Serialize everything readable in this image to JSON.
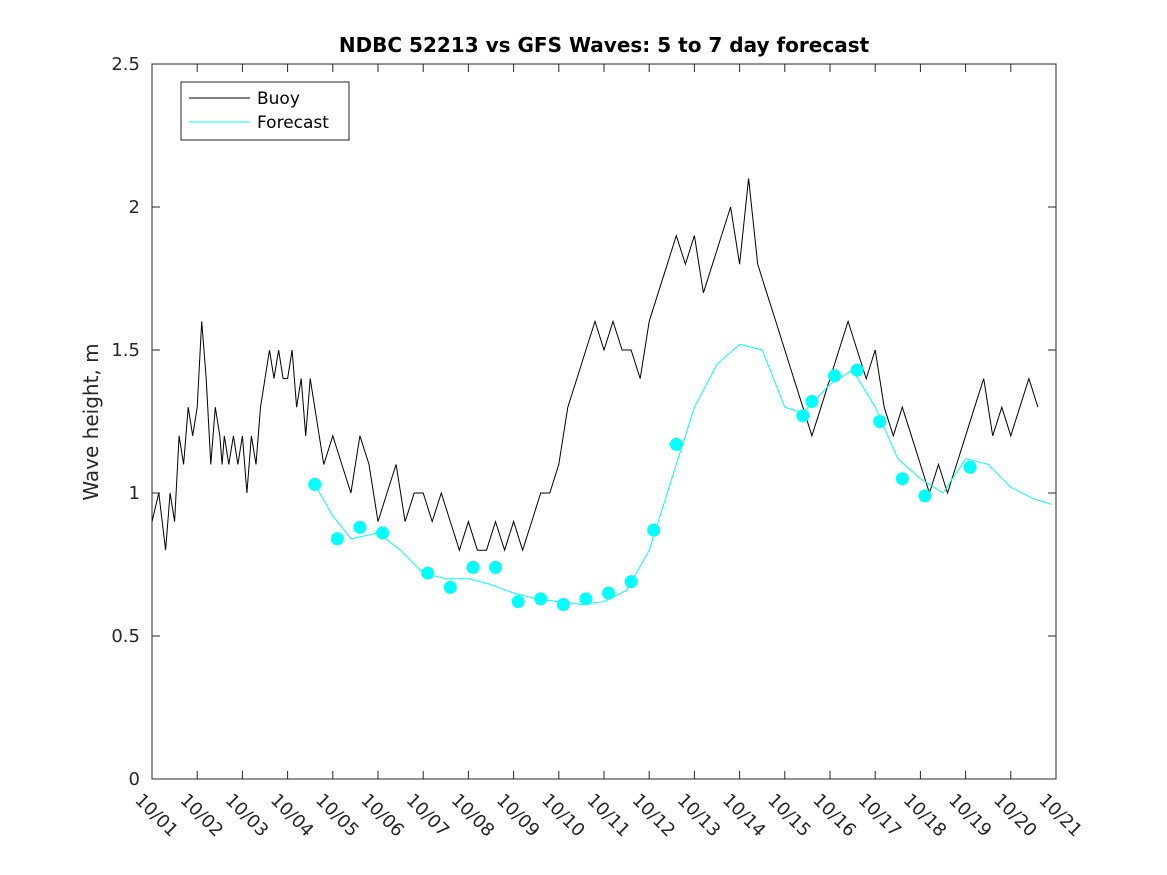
{
  "chart_data": {
    "type": "line",
    "title": "NDBC 52213 vs GFS Waves: 5 to 7 day forecast",
    "xlabel": "",
    "ylabel": "Wave height, m",
    "xlim": [
      0,
      20
    ],
    "ylim": [
      0,
      2.5
    ],
    "grid": false,
    "legend_position": "top-left",
    "x_tick_values": [
      0,
      1,
      2,
      3,
      4,
      5,
      6,
      7,
      8,
      9,
      10,
      11,
      12,
      13,
      14,
      15,
      16,
      17,
      18,
      19,
      20
    ],
    "x_tick_labels": [
      "10/01",
      "10/02",
      "10/03",
      "10/04",
      "10/05",
      "10/06",
      "10/07",
      "10/08",
      "10/09",
      "10/10",
      "10/11",
      "10/12",
      "10/13",
      "10/14",
      "10/15",
      "10/16",
      "10/17",
      "10/18",
      "10/19",
      "10/20",
      "10/21"
    ],
    "y_tick_values": [
      0,
      0.5,
      1,
      1.5,
      2,
      2.5
    ],
    "y_tick_labels": [
      "0",
      "0.5",
      "1",
      "1.5",
      "2",
      "2.5"
    ],
    "series": [
      {
        "name": "Buoy",
        "color": "#000000",
        "x": [
          0.0,
          0.15,
          0.3,
          0.4,
          0.5,
          0.6,
          0.7,
          0.8,
          0.9,
          1.0,
          1.1,
          1.2,
          1.3,
          1.4,
          1.5,
          1.55,
          1.6,
          1.7,
          1.8,
          1.9,
          2.0,
          2.1,
          2.2,
          2.3,
          2.4,
          2.5,
          2.6,
          2.7,
          2.8,
          2.9,
          3.0,
          3.1,
          3.2,
          3.3,
          3.4,
          3.5,
          3.6,
          3.7,
          3.8,
          4.0,
          4.2,
          4.4,
          4.6,
          4.8,
          5.0,
          5.2,
          5.4,
          5.6,
          5.8,
          6.0,
          6.2,
          6.4,
          6.6,
          6.8,
          7.0,
          7.2,
          7.4,
          7.6,
          7.8,
          8.0,
          8.2,
          8.4,
          8.6,
          8.8,
          9.0,
          9.2,
          9.4,
          9.6,
          9.8,
          10.0,
          10.2,
          10.4,
          10.6,
          10.8,
          11.0,
          11.2,
          11.4,
          11.6,
          11.8,
          12.0,
          12.2,
          12.4,
          12.6,
          12.8,
          13.0,
          13.2,
          13.4,
          13.6,
          13.8,
          14.0,
          14.2,
          14.4,
          14.6,
          14.8,
          15.0,
          15.2,
          15.4,
          15.6,
          15.8,
          16.0,
          16.2,
          16.4,
          16.6,
          16.8,
          17.0,
          17.2,
          17.4,
          17.6,
          17.8,
          18.0,
          18.2,
          18.4,
          18.6,
          18.8,
          19.0,
          19.2,
          19.4,
          19.6
        ],
        "y": [
          0.9,
          1.0,
          0.8,
          1.0,
          0.9,
          1.2,
          1.1,
          1.3,
          1.2,
          1.3,
          1.6,
          1.4,
          1.1,
          1.3,
          1.2,
          1.1,
          1.2,
          1.1,
          1.2,
          1.1,
          1.2,
          1.0,
          1.2,
          1.1,
          1.3,
          1.4,
          1.5,
          1.4,
          1.5,
          1.4,
          1.4,
          1.5,
          1.3,
          1.4,
          1.2,
          1.4,
          1.3,
          1.2,
          1.1,
          1.2,
          1.1,
          1.0,
          1.2,
          1.1,
          0.9,
          1.0,
          1.1,
          0.9,
          1.0,
          1.0,
          0.9,
          1.0,
          0.9,
          0.8,
          0.9,
          0.8,
          0.8,
          0.9,
          0.8,
          0.9,
          0.8,
          0.9,
          1.0,
          1.0,
          1.1,
          1.3,
          1.4,
          1.5,
          1.6,
          1.5,
          1.6,
          1.5,
          1.5,
          1.4,
          1.6,
          1.7,
          1.8,
          1.9,
          1.8,
          1.9,
          1.7,
          1.8,
          1.9,
          2.0,
          1.8,
          2.1,
          1.8,
          1.7,
          1.6,
          1.5,
          1.4,
          1.3,
          1.2,
          1.3,
          1.4,
          1.5,
          1.6,
          1.5,
          1.4,
          1.5,
          1.3,
          1.2,
          1.3,
          1.2,
          1.1,
          1.0,
          1.1,
          1.0,
          1.1,
          1.2,
          1.3,
          1.4,
          1.2,
          1.3,
          1.2,
          1.3,
          1.4,
          1.3
        ]
      },
      {
        "name": "Forecast",
        "color": "#00ffff",
        "x": [
          3.6,
          4.0,
          4.4,
          5.0,
          5.5,
          6.0,
          6.5,
          7.0,
          7.5,
          8.0,
          8.5,
          9.0,
          9.5,
          10.0,
          10.5,
          11.0,
          11.5,
          12.0,
          12.5,
          13.0,
          13.5,
          14.0,
          14.4,
          15.0,
          15.5,
          16.0,
          16.5,
          17.0,
          17.5,
          18.0,
          18.5,
          19.0,
          19.5,
          19.9
        ],
        "y": [
          1.03,
          0.92,
          0.84,
          0.86,
          0.8,
          0.72,
          0.7,
          0.7,
          0.68,
          0.65,
          0.63,
          0.62,
          0.61,
          0.62,
          0.66,
          0.8,
          1.05,
          1.3,
          1.45,
          1.52,
          1.5,
          1.3,
          1.28,
          1.38,
          1.43,
          1.3,
          1.12,
          1.05,
          1.0,
          1.12,
          1.1,
          1.02,
          0.98,
          0.96
        ]
      }
    ],
    "forecast_markers": {
      "x": [
        3.6,
        4.1,
        4.6,
        5.1,
        6.1,
        6.6,
        7.1,
        7.6,
        8.1,
        8.6,
        9.1,
        9.6,
        10.1,
        10.6,
        11.1,
        11.6,
        14.4,
        14.6,
        15.1,
        15.6,
        16.1,
        16.6,
        17.1,
        18.1
      ],
      "y": [
        1.03,
        0.84,
        0.88,
        0.86,
        0.72,
        0.67,
        0.74,
        0.74,
        0.62,
        0.63,
        0.61,
        0.63,
        0.65,
        0.69,
        0.87,
        1.17,
        1.27,
        1.32,
        1.41,
        1.43,
        1.25,
        1.05,
        0.99,
        1.09
      ]
    }
  }
}
